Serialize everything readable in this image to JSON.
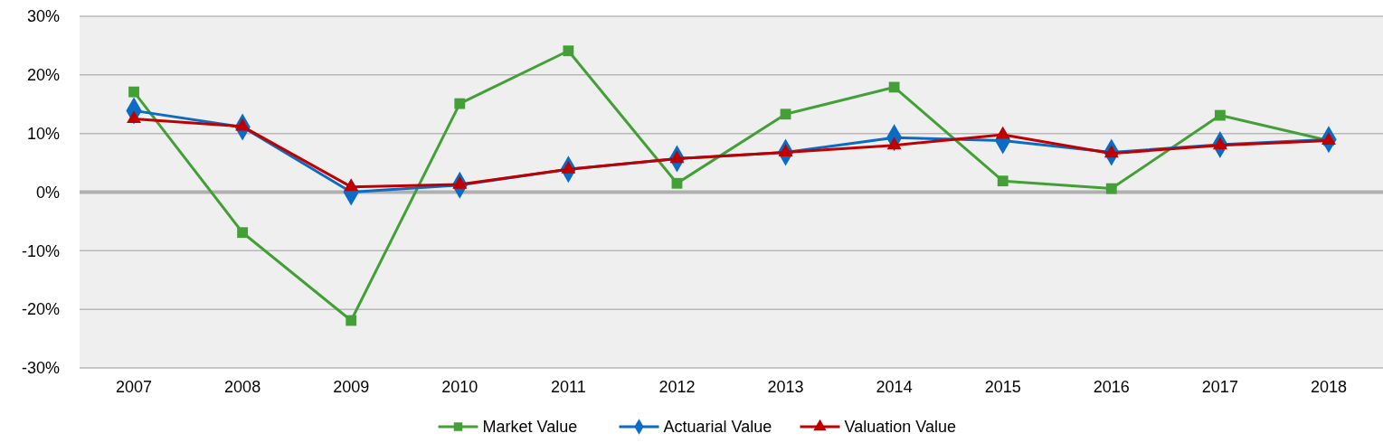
{
  "chart_data": {
    "type": "line",
    "categories": [
      "2007",
      "2008",
      "2009",
      "2010",
      "2011",
      "2012",
      "2013",
      "2014",
      "2015",
      "2016",
      "2017",
      "2018"
    ],
    "series": [
      {
        "name": "Market Value",
        "color": "#43a036",
        "marker": "square",
        "values": [
          17.1,
          -6.9,
          -21.9,
          15.1,
          24.1,
          1.5,
          13.3,
          17.9,
          1.9,
          0.6,
          13.1,
          8.8
        ]
      },
      {
        "name": "Actuarial Value",
        "color": "#0a6cc4",
        "marker": "diamond",
        "values": [
          13.9,
          11.1,
          0,
          1.2,
          3.9,
          5.7,
          6.8,
          9.3,
          8.8,
          6.8,
          8.1,
          9.0
        ]
      },
      {
        "name": "Valuation Value",
        "color": "#c00000",
        "marker": "triangle",
        "values": [
          12.5,
          11.2,
          0.9,
          1.3,
          3.9,
          5.7,
          6.8,
          8.0,
          9.8,
          6.6,
          8.0,
          8.8
        ]
      }
    ],
    "ylim": [
      -30,
      30
    ],
    "yticks": [
      {
        "value": -30,
        "label": "-30%"
      },
      {
        "value": -20,
        "label": "-20%"
      },
      {
        "value": -10,
        "label": "-10%"
      },
      {
        "value": 0,
        "label": "0%"
      },
      {
        "value": 10,
        "label": "10%"
      },
      {
        "value": 20,
        "label": "20%"
      },
      {
        "value": 30,
        "label": "30%"
      }
    ],
    "grid": "y",
    "legend": "bottom",
    "ref_lines": [
      {
        "axis": "y",
        "value": 0,
        "color": "#b0b0b0"
      }
    ],
    "line_style": "solid"
  }
}
